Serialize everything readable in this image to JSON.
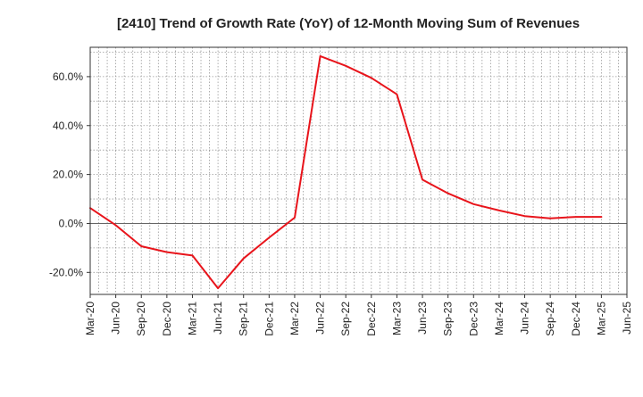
{
  "chart_data": {
    "type": "line",
    "title": "[2410]  Trend of Growth Rate (YoY) of 12-Month Moving Sum of Revenues",
    "xlabel": "",
    "ylabel": "",
    "x_tick_labels": [
      "Mar-20",
      "Jun-20",
      "Sep-20",
      "Dec-20",
      "Mar-21",
      "Jun-21",
      "Sep-21",
      "Dec-21",
      "Mar-22",
      "Jun-22",
      "Sep-22",
      "Dec-22",
      "Mar-23",
      "Jun-23",
      "Sep-23",
      "Dec-23",
      "Mar-24",
      "Jun-24",
      "Sep-24",
      "Dec-24",
      "Mar-25",
      "Jun-25"
    ],
    "y_ticks": [
      -20,
      0,
      20,
      40,
      60
    ],
    "y_tick_labels": [
      "-20.0%",
      "0.0%",
      "20.0%",
      "40.0%",
      "60.0%"
    ],
    "ylim": [
      -29,
      72
    ],
    "grid": true,
    "zero_line": true,
    "series": [
      {
        "color": "#e8141b",
        "x": [
          "Mar-20",
          "Jun-20",
          "Sep-20",
          "Dec-20",
          "Mar-21",
          "Jun-21",
          "Sep-21",
          "Dec-21",
          "Mar-22",
          "Jun-22",
          "Sep-22",
          "Dec-22",
          "Mar-23",
          "Jun-23",
          "Sep-23",
          "Dec-23",
          "Mar-24",
          "Jun-24",
          "Sep-24",
          "Dec-24",
          "Mar-25"
        ],
        "values": [
          6.3,
          -0.7,
          -9.3,
          -11.7,
          -13.1,
          -26.5,
          -14.3,
          -5.8,
          2.4,
          68.4,
          64.4,
          59.5,
          52.8,
          17.9,
          12.3,
          7.9,
          5.3,
          3.0,
          2.1,
          2.7,
          2.7
        ]
      }
    ],
    "colors": {
      "line": "#e8141b",
      "grid": "#999999",
      "axis": "#333333",
      "zero_line": "#666666"
    }
  }
}
